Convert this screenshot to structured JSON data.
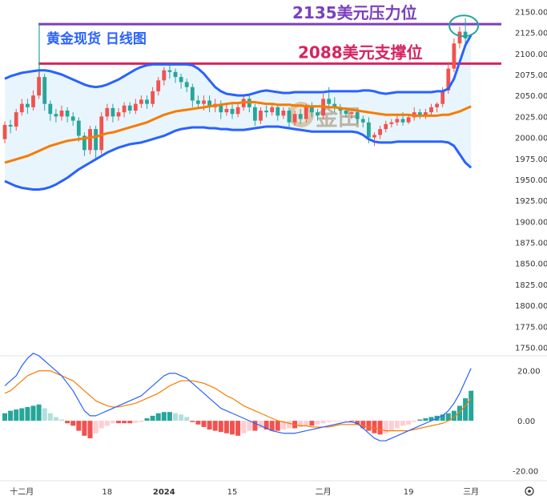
{
  "chart_data": [
    {
      "type": "candlestick",
      "title": "黄金现货 日线图",
      "ylim": [
        1740,
        2158
      ],
      "y_ticks": [
        "2150.00",
        "2125.00",
        "2100.00",
        "2075.00",
        "2050.00",
        "2025.00",
        "2000.00",
        "1975.00",
        "1950.00",
        "1925.00",
        "1900.00",
        "1875.00",
        "1850.00",
        "1825.00",
        "1800.00",
        "1775.00",
        "1750.00"
      ],
      "x_tick_labels": [
        "十二月",
        "18",
        "2024",
        "15",
        "二月",
        "19",
        "三月"
      ],
      "annotations": [
        {
          "value": 2135,
          "text_num": "2135",
          "text_unit": "美元压力位",
          "color": "#7b3fbf"
        },
        {
          "value": 2088,
          "text_num": "2088",
          "text_unit": "美元支撑位",
          "color": "#d6245f"
        }
      ],
      "colors": {
        "up": "#ef5350",
        "down": "#26a69a",
        "band": "#2962ff",
        "ma": "#f57c00",
        "fill": "#e3f2fd",
        "circle": "#26a69a"
      },
      "candles": [
        [
          1998,
          2015,
          1993,
          2019
        ],
        [
          2015,
          2013,
          2005,
          2021
        ],
        [
          2013,
          2030,
          2008,
          2034
        ],
        [
          2030,
          2040,
          2026,
          2046
        ],
        [
          2040,
          2036,
          2028,
          2046
        ],
        [
          2036,
          2050,
          2032,
          2056
        ],
        [
          2050,
          2072,
          2046,
          2078
        ],
        [
          2072,
          2040,
          2032,
          2076
        ],
        [
          2040,
          2028,
          2020,
          2044
        ],
        [
          2028,
          2025,
          2018,
          2034
        ],
        [
          2025,
          2032,
          2020,
          2038
        ],
        [
          2032,
          2025,
          2018,
          2036
        ],
        [
          2025,
          2020,
          2014,
          2030
        ],
        [
          2020,
          2002,
          1995,
          2024
        ],
        [
          2002,
          1985,
          1978,
          2006
        ],
        [
          1985,
          2010,
          1980,
          2014
        ],
        [
          2010,
          1985,
          1975,
          2014
        ],
        [
          1985,
          2025,
          1980,
          2030
        ],
        [
          2025,
          2035,
          2020,
          2040
        ],
        [
          2035,
          2025,
          2018,
          2040
        ],
        [
          2025,
          2030,
          2020,
          2035
        ],
        [
          2030,
          2038,
          2024,
          2042
        ],
        [
          2038,
          2032,
          2028,
          2042
        ],
        [
          2032,
          2040,
          2028,
          2046
        ],
        [
          2040,
          2045,
          2035,
          2050
        ],
        [
          2045,
          2040,
          2034,
          2050
        ],
        [
          2040,
          2055,
          2036,
          2060
        ],
        [
          2055,
          2068,
          2050,
          2072
        ],
        [
          2068,
          2080,
          2062,
          2084
        ],
        [
          2080,
          2078,
          2070,
          2086
        ],
        [
          2078,
          2072,
          2065,
          2082
        ],
        [
          2072,
          2066,
          2058,
          2076
        ],
        [
          2066,
          2060,
          2054,
          2070
        ],
        [
          2060,
          2044,
          2036,
          2064
        ],
        [
          2044,
          2040,
          2035,
          2050
        ],
        [
          2040,
          2044,
          2032,
          2050
        ],
        [
          2044,
          2036,
          2030,
          2050
        ],
        [
          2036,
          2040,
          2030,
          2046
        ],
        [
          2040,
          2030,
          2022,
          2044
        ],
        [
          2030,
          2034,
          2026,
          2040
        ],
        [
          2034,
          2028,
          2022,
          2040
        ],
        [
          2028,
          2036,
          2024,
          2042
        ],
        [
          2036,
          2046,
          2032,
          2050
        ],
        [
          2046,
          2036,
          2030,
          2052
        ],
        [
          2036,
          2020,
          2014,
          2040
        ],
        [
          2020,
          2032,
          2016,
          2036
        ],
        [
          2032,
          2030,
          2024,
          2038
        ],
        [
          2030,
          2036,
          2026,
          2040
        ],
        [
          2036,
          2026,
          2020,
          2040
        ],
        [
          2026,
          2032,
          2022,
          2036
        ],
        [
          2032,
          2018,
          2012,
          2036
        ],
        [
          2018,
          2028,
          2014,
          2032
        ],
        [
          2028,
          2022,
          2016,
          2034
        ],
        [
          2022,
          2036,
          2018,
          2040
        ],
        [
          2036,
          2030,
          2024,
          2042
        ],
        [
          2030,
          2026,
          2020,
          2034
        ],
        [
          2026,
          2046,
          2022,
          2052
        ],
        [
          2046,
          2040,
          2034,
          2060
        ],
        [
          2040,
          2036,
          2030,
          2048
        ],
        [
          2036,
          2032,
          2028,
          2040
        ],
        [
          2032,
          2028,
          2024,
          2036
        ],
        [
          2028,
          2030,
          2022,
          2034
        ],
        [
          2030,
          2022,
          2016,
          2034
        ],
        [
          2022,
          2018,
          2012,
          2026
        ],
        [
          2018,
          2000,
          1993,
          2024
        ],
        [
          2000,
          2003,
          1990,
          2006
        ],
        [
          2003,
          2010,
          1998,
          2014
        ],
        [
          2010,
          2016,
          2006,
          2020
        ],
        [
          2016,
          2018,
          2012,
          2022
        ],
        [
          2018,
          2022,
          2014,
          2026
        ],
        [
          2022,
          2018,
          2014,
          2030
        ],
        [
          2018,
          2024,
          2016,
          2028
        ],
        [
          2024,
          2030,
          2020,
          2036
        ],
        [
          2030,
          2026,
          2022,
          2034
        ],
        [
          2026,
          2030,
          2022,
          2034
        ],
        [
          2030,
          2036,
          2026,
          2040
        ],
        [
          2036,
          2040,
          2030,
          2042
        ],
        [
          2040,
          2056,
          2036,
          2060
        ],
        [
          2056,
          2082,
          2052,
          2090
        ],
        [
          2082,
          2112,
          2078,
          2118
        ],
        [
          2112,
          2126,
          2106,
          2132
        ],
        [
          2126,
          2118,
          2110,
          2142
        ]
      ],
      "upper_band": [
        2070,
        2073,
        2075,
        2077,
        2078,
        2079,
        2080,
        2080,
        2079,
        2077,
        2075,
        2072,
        2069,
        2066,
        2063,
        2061,
        2060,
        2061,
        2063,
        2066,
        2069,
        2073,
        2077,
        2081,
        2084,
        2086,
        2087,
        2087,
        2087,
        2087,
        2087,
        2087,
        2087,
        2086,
        2082,
        2076,
        2068,
        2060,
        2055,
        2052,
        2051,
        2050,
        2050,
        2051,
        2053,
        2055,
        2056,
        2055,
        2054,
        2053,
        2053,
        2054,
        2054,
        2054,
        2054,
        2054,
        2054,
        2055,
        2055,
        2055,
        2055,
        2055,
        2055,
        2056,
        2056,
        2055,
        2053,
        2052,
        2053,
        2054,
        2054,
        2054,
        2054,
        2054,
        2054,
        2054,
        2055,
        2055,
        2058,
        2070,
        2090,
        2110,
        2122
      ],
      "lower_band": [
        1948,
        1945,
        1942,
        1940,
        1939,
        1938,
        1938,
        1939,
        1941,
        1944,
        1948,
        1952,
        1957,
        1962,
        1966,
        1970,
        1974,
        1978,
        1982,
        1985,
        1988,
        1990,
        1992,
        1993,
        1994,
        1996,
        1998,
        2000,
        2002,
        2005,
        2008,
        2010,
        2011,
        2012,
        2012,
        2012,
        2011,
        2011,
        2010,
        2010,
        2009,
        2009,
        2009,
        2010,
        2011,
        2012,
        2013,
        2013,
        2013,
        2012,
        2011,
        2010,
        2009,
        2008,
        2007,
        2007,
        2007,
        2007,
        2007,
        2007,
        2007,
        2007,
        2006,
        2003,
        1998,
        1995,
        1994,
        1994,
        1994,
        1995,
        1995,
        1995,
        1995,
        1995,
        1995,
        1995,
        1995,
        1995,
        1994,
        1990,
        1980,
        1970,
        1964
      ],
      "ma": [
        1970,
        1972,
        1974,
        1976,
        1978,
        1981,
        1984,
        1987,
        1990,
        1992,
        1994,
        1996,
        1997,
        1998,
        1999,
        2000,
        2001,
        2003,
        2005,
        2006,
        2008,
        2010,
        2012,
        2014,
        2016,
        2018,
        2021,
        2024,
        2027,
        2029,
        2031,
        2032,
        2033,
        2034,
        2035,
        2036,
        2037,
        2038,
        2039,
        2040,
        2041,
        2041,
        2042,
        2042,
        2042,
        2041,
        2040,
        2040,
        2039,
        2039,
        2039,
        2038,
        2038,
        2037,
        2037,
        2037,
        2037,
        2036,
        2036,
        2035,
        2034,
        2033,
        2032,
        2031,
        2030,
        2029,
        2028,
        2027,
        2027,
        2027,
        2027,
        2027,
        2026,
        2026,
        2026,
        2026,
        2026,
        2027,
        2027,
        2029,
        2031,
        2034,
        2037
      ]
    },
    {
      "type": "macd",
      "ylim": [
        -24,
        26
      ],
      "y_ticks": [
        "20.00",
        "0.00",
        "-20.00"
      ],
      "colors": {
        "pos_strong": "#26a69a",
        "pos_weak": "#b2dfdb",
        "neg_strong": "#ef5350",
        "neg_weak": "#ffcdd2",
        "macd": "#2962ff",
        "signal": "#f57c00"
      },
      "hist": [
        3,
        4,
        4.5,
        5,
        5.5,
        6,
        6.5,
        5,
        3,
        1.5,
        0.5,
        -1,
        -2,
        -4,
        -6,
        -7,
        -5,
        -3,
        -2,
        -1,
        -1,
        -1,
        -1,
        -0.8,
        -0.5,
        1,
        2,
        3,
        3.5,
        3.5,
        3,
        2.5,
        1.5,
        -0.5,
        -1.5,
        -2.5,
        -3.5,
        -4,
        -4.5,
        -5,
        -5.5,
        -6,
        -5,
        -4,
        -4,
        -3,
        -3.5,
        -4,
        -4,
        -3.5,
        -3,
        -3,
        -2.5,
        -2,
        -2,
        -1.5,
        -1,
        -0.5,
        -0.3,
        -0.2,
        -0.1,
        -0.3,
        -1.5,
        -3,
        -4,
        -5,
        -5.5,
        -5,
        -4,
        -3,
        -2,
        -1.5,
        -0.5,
        0.5,
        1,
        1.5,
        2,
        2.5,
        3,
        4,
        6,
        9,
        12
      ],
      "macd": [
        14,
        16,
        18,
        22,
        25,
        27,
        26,
        24,
        22,
        20,
        18,
        15,
        12,
        8,
        4,
        2,
        2,
        3,
        4,
        5,
        6,
        7,
        8,
        9,
        10,
        12,
        14,
        16,
        18,
        19,
        19,
        18,
        17,
        15,
        13,
        11,
        9,
        7,
        5,
        4,
        3,
        2,
        1,
        0,
        -1,
        -2,
        -3,
        -4,
        -4.5,
        -5,
        -5,
        -5,
        -4.5,
        -4,
        -3.5,
        -3,
        -2.5,
        -2,
        -1.5,
        -1,
        -0.5,
        -0.5,
        -1,
        -3,
        -5,
        -7,
        -8,
        -8,
        -7,
        -6,
        -5,
        -4,
        -3,
        -2,
        -1,
        0,
        1,
        2,
        4,
        7,
        11,
        16,
        21
      ],
      "signal": [
        11,
        12,
        14,
        16,
        18,
        19,
        20,
        20,
        20,
        19,
        18,
        17,
        16,
        14,
        12,
        10,
        8,
        7,
        6,
        5.5,
        5.5,
        6,
        6.5,
        7,
        8,
        9,
        10,
        11,
        12.5,
        14,
        15,
        16,
        16,
        16,
        15.5,
        15,
        14,
        13,
        11.5,
        10,
        9,
        7.5,
        6,
        5,
        4,
        3,
        2,
        1,
        0,
        -0.5,
        -1,
        -1.5,
        -2,
        -2,
        -2.5,
        -2.5,
        -2.5,
        -2.5,
        -2,
        -1.5,
        -1.5,
        -1.5,
        -1.5,
        -2,
        -2.5,
        -3,
        -3.5,
        -4,
        -4,
        -4,
        -4,
        -4,
        -3.5,
        -3,
        -2.5,
        -2,
        -1.5,
        -1,
        0,
        1.5,
        3.5,
        6,
        9
      ]
    }
  ]
}
